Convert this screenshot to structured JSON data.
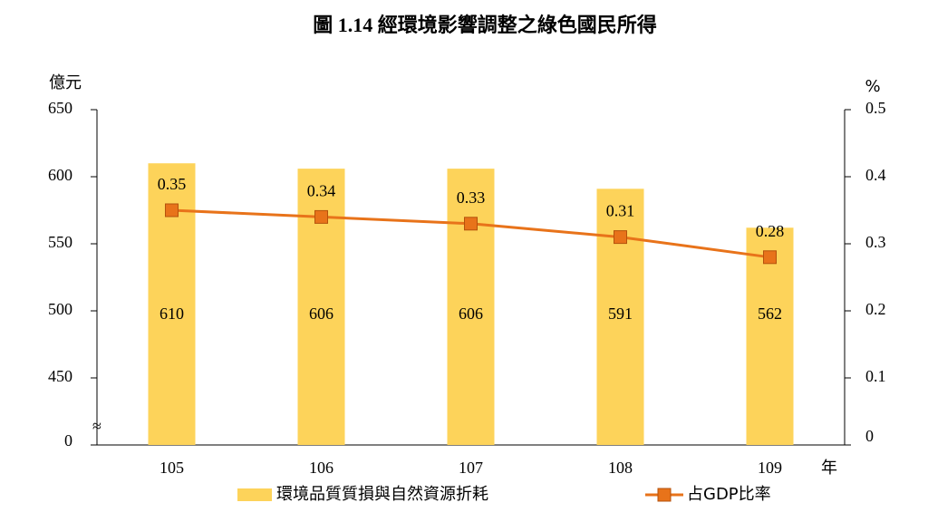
{
  "chart_data": {
    "type": "combo",
    "title": "圖 1.14 經環境影響調整之綠色國民所得",
    "ylabel": "億元",
    "y2label": "%",
    "x_unit": "年",
    "categories": [
      "105",
      "106",
      "107",
      "108",
      "109"
    ],
    "series": [
      {
        "name": "環境品質質損與自然資源折耗",
        "type": "bar",
        "color": "#fdd35a",
        "values": [
          610,
          606,
          606,
          591,
          562
        ]
      },
      {
        "name": "占GDP比率",
        "type": "line",
        "axis": "y2",
        "color": "#e8731a",
        "values": [
          0.35,
          0.34,
          0.33,
          0.31,
          0.28
        ]
      }
    ],
    "ylim": [
      0,
      650
    ],
    "yticks": [
      0,
      450,
      500,
      550,
      600,
      650
    ],
    "axis_break": [
      0,
      400
    ],
    "break_symbol": "≈",
    "y2lim": [
      0,
      0.5
    ],
    "y2ticks": [
      0,
      0.1,
      0.2,
      0.3,
      0.4,
      0.5
    ]
  }
}
